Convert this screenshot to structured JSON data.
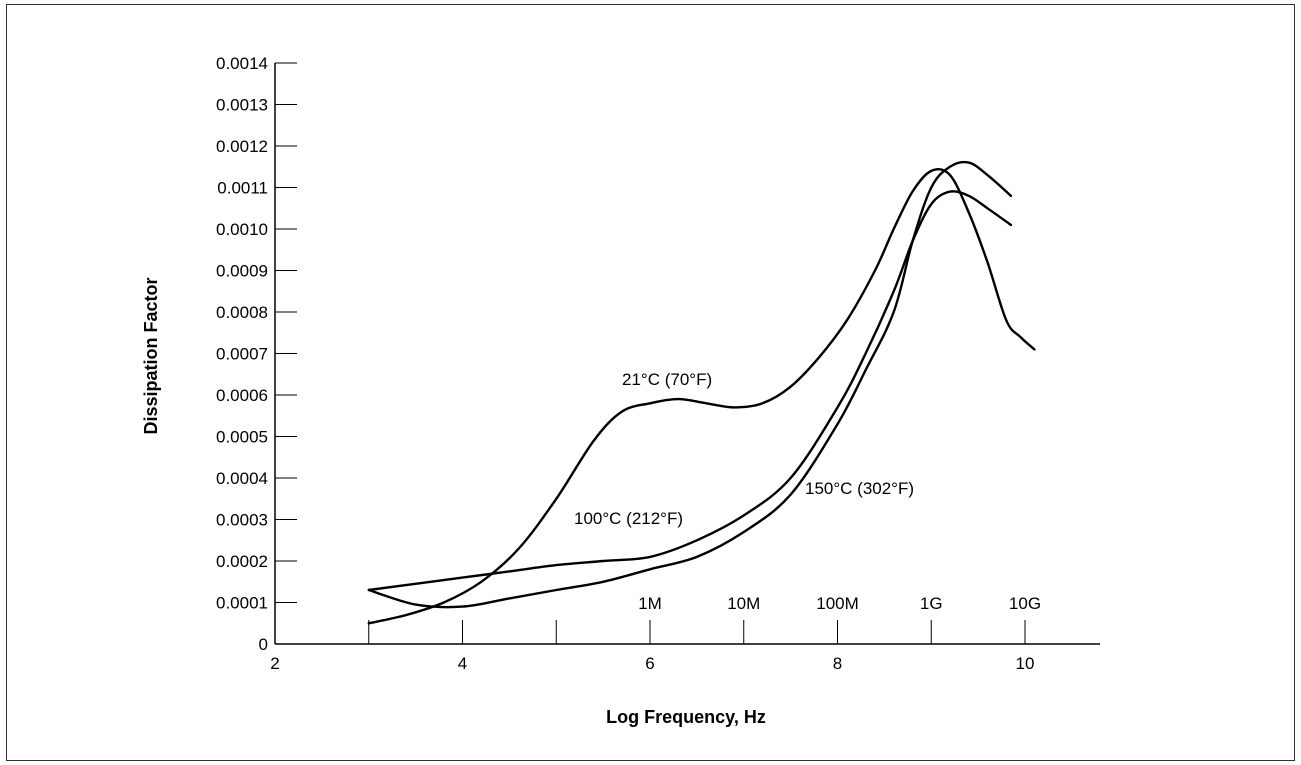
{
  "chart_data": {
    "type": "line",
    "title": "",
    "xlabel": "Log Frequency, Hz",
    "ylabel": "Dissipation Factor",
    "xlim": [
      2,
      10.8
    ],
    "ylim": [
      0,
      0.0014
    ],
    "x_ticks": [
      2,
      3,
      4,
      5,
      6,
      7,
      8,
      9,
      10
    ],
    "x_tick_labels": [
      "2",
      "4",
      "6",
      "8",
      "10"
    ],
    "x_tick_label_values": [
      2,
      4,
      6,
      8,
      10
    ],
    "y_ticks": [
      0,
      0.0001,
      0.0002,
      0.0003,
      0.0004,
      0.0005,
      0.0006,
      0.0007,
      0.0008,
      0.0009,
      0.001,
      0.0011,
      0.0012,
      0.0013,
      0.0014
    ],
    "y_tick_labels": [
      "0",
      "0.0001",
      "0.0002",
      "0.0003",
      "0.0004",
      "0.0005",
      "0.0006",
      "0.0007",
      "0.0008",
      "0.0009",
      "0.0010",
      "0.0011",
      "0.0012",
      "0.0013",
      "0.0014"
    ],
    "frequency_markers": [
      {
        "label": "1M",
        "x": 6
      },
      {
        "label": "10M",
        "x": 7
      },
      {
        "label": "100M",
        "x": 8
      },
      {
        "label": "1G",
        "x": 9
      },
      {
        "label": "10G",
        "x": 10
      }
    ],
    "grid": false,
    "series": [
      {
        "name": "21°C (70°F)",
        "x": [
          3.0,
          3.4,
          3.8,
          4.2,
          4.6,
          5.0,
          5.4,
          5.7,
          6.0,
          6.3,
          6.6,
          6.9,
          7.2,
          7.5,
          7.8,
          8.1,
          8.4,
          8.6,
          8.8,
          9.0,
          9.2,
          9.4,
          9.6,
          9.8,
          9.95,
          10.1
        ],
        "y": [
          5e-05,
          7e-05,
          0.0001,
          0.00015,
          0.00023,
          0.00035,
          0.00049,
          0.00056,
          0.00058,
          0.00059,
          0.00058,
          0.00057,
          0.00058,
          0.00062,
          0.00069,
          0.00078,
          0.0009,
          0.001,
          0.00109,
          0.00114,
          0.00113,
          0.00104,
          0.00092,
          0.00078,
          0.00074,
          0.00071
        ]
      },
      {
        "name": "100°C (212°F)",
        "x": [
          3.0,
          3.5,
          4.0,
          4.5,
          5.0,
          5.5,
          6.0,
          6.5,
          7.0,
          7.5,
          8.0,
          8.3,
          8.6,
          8.8,
          9.0,
          9.2,
          9.4,
          9.6,
          9.85
        ],
        "y": [
          0.00013,
          0.000145,
          0.00016,
          0.000175,
          0.00019,
          0.0002,
          0.00021,
          0.00025,
          0.00031,
          0.0004,
          0.00057,
          0.0007,
          0.00085,
          0.00097,
          0.00106,
          0.00109,
          0.00108,
          0.00105,
          0.00101
        ]
      },
      {
        "name": "150°C (302°F)",
        "x": [
          3.0,
          3.5,
          4.0,
          4.5,
          5.0,
          5.5,
          6.0,
          6.5,
          7.0,
          7.5,
          8.0,
          8.3,
          8.6,
          8.8,
          9.0,
          9.2,
          9.4,
          9.6,
          9.85
        ],
        "y": [
          0.00013,
          9.5e-05,
          9e-05,
          0.00011,
          0.00013,
          0.00015,
          0.00018,
          0.00021,
          0.00027,
          0.00036,
          0.00053,
          0.00066,
          0.0008,
          0.00097,
          0.0011,
          0.00115,
          0.00116,
          0.00113,
          0.00108
        ]
      }
    ],
    "annotations": [
      {
        "text": "21°C (70°F)",
        "series": 0
      },
      {
        "text": "100°C (212°F)",
        "series": 1
      },
      {
        "text": "150°C (302°F)",
        "series": 2
      }
    ]
  }
}
